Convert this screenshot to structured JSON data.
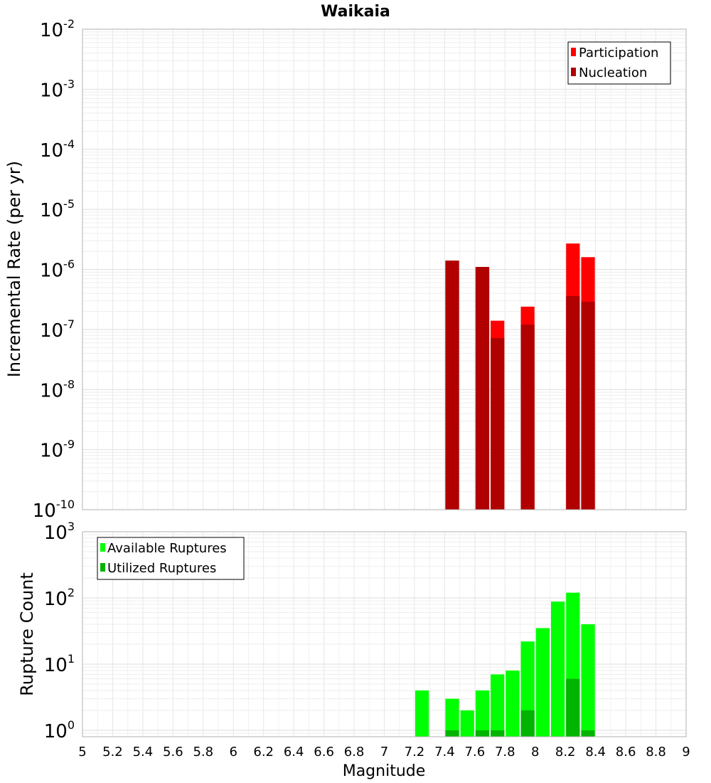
{
  "chart_data": [
    {
      "type": "bar",
      "panel": "top",
      "title": "Waikaia",
      "ylabel": "Incremental Rate (per yr)",
      "yscale": "log",
      "ylim": [
        1e-10,
        0.01
      ],
      "xlim": [
        5,
        9
      ],
      "bin_width": 0.1,
      "grid": true,
      "legend_position": "top-right",
      "ytick_exponents": [
        "-10",
        "-9",
        "-8",
        "-7",
        "-6",
        "-5",
        "-4",
        "-3",
        "-2"
      ],
      "ytick_base": "10",
      "series": [
        {
          "name": "Participation",
          "color": "#ff0000",
          "x": [
            7.45,
            7.65,
            7.75,
            7.95,
            8.25,
            8.35
          ],
          "values": [
            1.4e-06,
            1.1e-06,
            1.4e-07,
            2.4e-07,
            2.7e-06,
            1.6e-06
          ]
        },
        {
          "name": "Nucleation",
          "color": "#b00000",
          "x": [
            7.45,
            7.65,
            7.75,
            7.95,
            8.25,
            8.35
          ],
          "values": [
            1.4e-06,
            1.1e-06,
            7.2e-08,
            1.2e-07,
            3.6e-07,
            2.9e-07
          ]
        }
      ]
    },
    {
      "type": "bar",
      "panel": "bottom",
      "ylabel": "Rupture Count",
      "xlabel": "Magnitude",
      "yscale": "log",
      "ylim": [
        0.8,
        1000
      ],
      "xlim": [
        5,
        9
      ],
      "bin_width": 0.1,
      "grid": true,
      "legend_position": "top-left",
      "ytick_exponents": [
        "0",
        "1",
        "2",
        "3"
      ],
      "ytick_base": "10",
      "xticks": [
        "5",
        "5.2",
        "5.4",
        "5.6",
        "5.8",
        "6",
        "6.2",
        "6.4",
        "6.6",
        "6.8",
        "7",
        "7.2",
        "7.4",
        "7.6",
        "7.8",
        "8",
        "8.2",
        "8.4",
        "8.6",
        "8.8",
        "9"
      ],
      "series": [
        {
          "name": "Available Ruptures",
          "color": "#00ff00",
          "x": [
            7.25,
            7.45,
            7.55,
            7.65,
            7.75,
            7.85,
            7.95,
            8.05,
            8.15,
            8.25,
            8.35
          ],
          "values": [
            4,
            3,
            2,
            4,
            7,
            8,
            22,
            35,
            88,
            120,
            40
          ]
        },
        {
          "name": "Utilized Ruptures",
          "color": "#00b400",
          "x": [
            7.45,
            7.65,
            7.75,
            7.95,
            8.25,
            8.35
          ],
          "values": [
            1,
            1,
            1,
            2,
            6,
            1
          ]
        }
      ]
    }
  ]
}
